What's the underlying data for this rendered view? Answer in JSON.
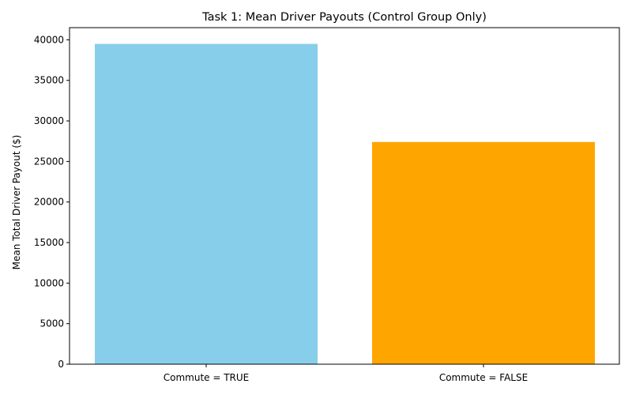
{
  "chart_data": {
    "type": "bar",
    "title": "Task 1: Mean Driver Payouts (Control Group Only)",
    "xlabel": "",
    "ylabel": "Mean Total Driver Payout ($)",
    "categories": [
      "Commute = TRUE",
      "Commute = FALSE"
    ],
    "values": [
      39500,
      27400
    ],
    "colors": [
      "#87CEEB",
      "#FFA500"
    ],
    "ylim": [
      0,
      41500
    ],
    "yticks": [
      0,
      5000,
      10000,
      15000,
      20000,
      25000,
      30000,
      35000,
      40000
    ],
    "grid": false,
    "legend": "none"
  }
}
